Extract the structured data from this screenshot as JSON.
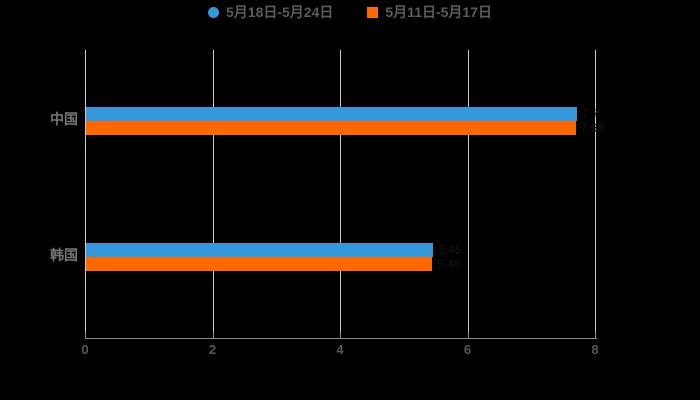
{
  "legend": {
    "items": [
      {
        "label": "5月18日-5月24日",
        "color": "#3498db",
        "marker": "circle"
      },
      {
        "label": "5月11日-5月17日",
        "color": "#ff6700",
        "marker": "square"
      }
    ]
  },
  "axis": {
    "tick_labels": [
      "0",
      "2",
      "4",
      "6",
      "8"
    ]
  },
  "chart_data": {
    "type": "bar",
    "orientation": "horizontal",
    "title": "",
    "categories": [
      "中国",
      "韩国"
    ],
    "series": [
      {
        "name": "5月18日-5月24日",
        "color": "#3498db",
        "values": [
          7.7,
          5.45
        ]
      },
      {
        "name": "5月11日-5月17日",
        "color": "#ff6700",
        "values": [
          7.68,
          5.43
        ]
      }
    ],
    "xlim": [
      0,
      8
    ],
    "xticks": [
      0,
      2,
      4,
      6,
      8
    ],
    "ylabel": "",
    "xlabel": "",
    "grid": "vertical-gridlines-only",
    "legend_position": "top-center",
    "background": "#000000",
    "note": "value labels at bar ends are near-black text on black background (barely visible)"
  },
  "colors": {
    "background": "#000000",
    "gridline": "#c9c9c9",
    "axis_line": "#8a8a8a",
    "legend_text": "#5c5c5c",
    "category_text": "#767676",
    "tick_text": "#575757",
    "value_label_text": "#161616"
  }
}
